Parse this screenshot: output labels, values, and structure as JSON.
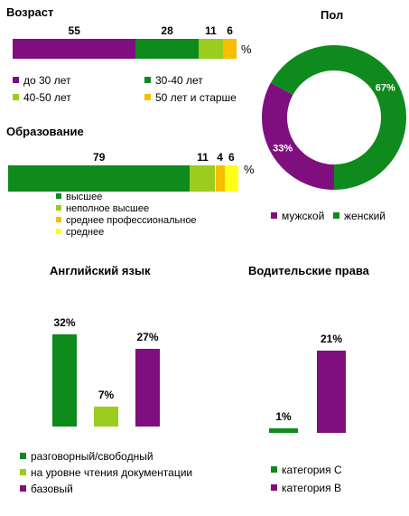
{
  "colors": {
    "purple": "#7f0f7f",
    "green": "#0f8a1d",
    "lightgreen": "#9acd1e",
    "amber": "#f7be00",
    "yellow": "#ffff1a"
  },
  "chart_data": [
    {
      "type": "bar",
      "orientation": "horizontal-stacked",
      "title": "Возраст",
      "unit_label": "%",
      "series": [
        {
          "name": "до 30 лет",
          "value": 55,
          "color": "#7f0f7f"
        },
        {
          "name": "30-40  лет",
          "value": 28,
          "color": "#0f8a1d"
        },
        {
          "name": "40-50  лет",
          "value": 11,
          "color": "#9acd1e"
        },
        {
          "name": "50 лет  и старше",
          "value": 6,
          "color": "#f7be00"
        }
      ]
    },
    {
      "type": "pie",
      "title": "Пол",
      "slices": [
        {
          "name": "мужской",
          "value": 33,
          "label": "33%",
          "color": "#7f0f7f"
        },
        {
          "name": "женский",
          "value": 67,
          "label": "67%",
          "color": "#0f8a1d"
        }
      ]
    },
    {
      "type": "bar",
      "orientation": "horizontal-stacked",
      "title": "Образование",
      "unit_label": "%",
      "series": [
        {
          "name": "высшее",
          "value": 79,
          "color": "#0f8a1d"
        },
        {
          "name": "неполное высшее",
          "value": 11,
          "color": "#9acd1e"
        },
        {
          "name": "среднее профессиональное",
          "value": 4,
          "color": "#f7be00"
        },
        {
          "name": "среднее",
          "value": 6,
          "color": "#ffff1a"
        }
      ]
    },
    {
      "type": "bar",
      "title": "Английский язык",
      "ylim": [
        0,
        32
      ],
      "series": [
        {
          "name": "разговорный/свободный",
          "value": 32,
          "label": "32%",
          "color": "#0f8a1d"
        },
        {
          "name": "на уровне чтения документации",
          "value": 7,
          "label": "7%",
          "color": "#9acd1e"
        },
        {
          "name": "базовый",
          "value": 27,
          "label": "27%",
          "color": "#7f0f7f"
        }
      ]
    },
    {
      "type": "bar",
      "title": "Водительские права",
      "ylim": [
        0,
        21
      ],
      "series": [
        {
          "name": "категория  С",
          "value": 1,
          "label": "1%",
          "color": "#0f8a1d"
        },
        {
          "name": "категория  В",
          "value": 21,
          "label": "21%",
          "color": "#7f0f7f"
        }
      ]
    }
  ]
}
